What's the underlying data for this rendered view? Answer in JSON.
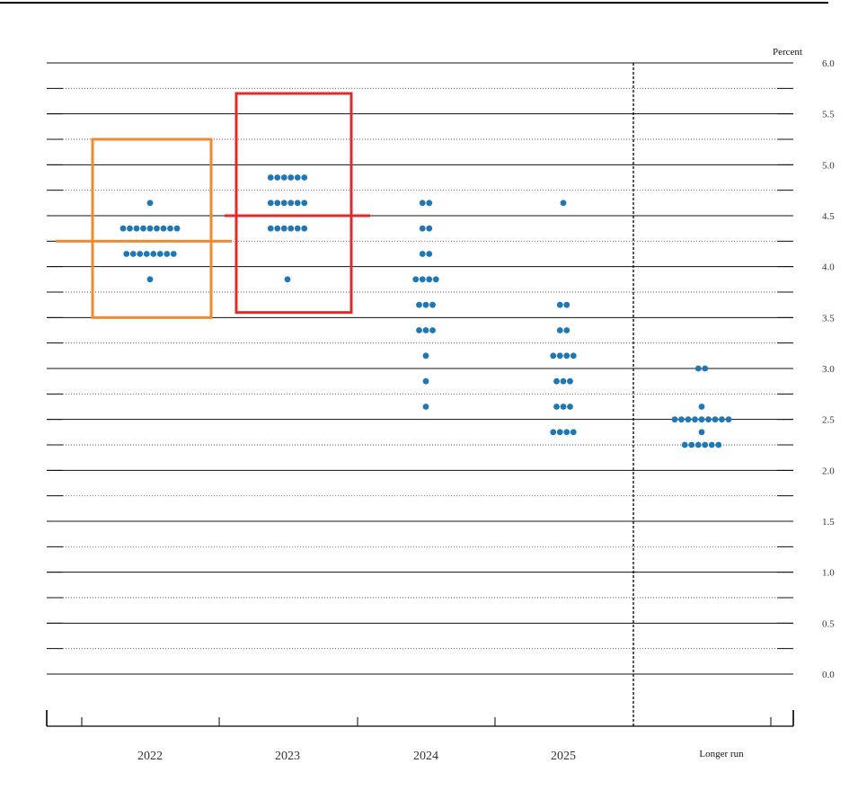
{
  "chart_data": {
    "type": "scatter",
    "subtype": "dot plot",
    "unit_label": "Percent",
    "ylim": [
      0,
      6
    ],
    "y_ticks": [
      "0.0",
      "0.5",
      "1.0",
      "1.5",
      "2.0",
      "2.5",
      "3.0",
      "3.5",
      "4.0",
      "4.5",
      "5.0",
      "5.5",
      "6.0"
    ],
    "grid": "dotted every 0.25, solid every 0.5",
    "categories": [
      "2022",
      "2023",
      "2024",
      "2025",
      "Longer run"
    ],
    "separator_before": "Longer run",
    "dot_color": "#1f77b4",
    "dots": [
      {
        "category": "2022",
        "y": 4.625,
        "count": 1
      },
      {
        "category": "2022",
        "y": 4.375,
        "count": 9
      },
      {
        "category": "2022",
        "y": 4.125,
        "count": 8
      },
      {
        "category": "2022",
        "y": 3.875,
        "count": 1
      },
      {
        "category": "2023",
        "y": 4.875,
        "count": 6
      },
      {
        "category": "2023",
        "y": 4.625,
        "count": 6
      },
      {
        "category": "2023",
        "y": 4.375,
        "count": 6
      },
      {
        "category": "2023",
        "y": 3.875,
        "count": 1
      },
      {
        "category": "2024",
        "y": 4.625,
        "count": 2
      },
      {
        "category": "2024",
        "y": 4.375,
        "count": 2
      },
      {
        "category": "2024",
        "y": 4.125,
        "count": 2
      },
      {
        "category": "2024",
        "y": 3.875,
        "count": 4
      },
      {
        "category": "2024",
        "y": 3.625,
        "count": 3
      },
      {
        "category": "2024",
        "y": 3.375,
        "count": 3
      },
      {
        "category": "2024",
        "y": 3.125,
        "count": 1
      },
      {
        "category": "2024",
        "y": 2.875,
        "count": 1
      },
      {
        "category": "2024",
        "y": 2.625,
        "count": 1
      },
      {
        "category": "2025",
        "y": 4.625,
        "count": 1
      },
      {
        "category": "2025",
        "y": 3.625,
        "count": 2
      },
      {
        "category": "2025",
        "y": 3.375,
        "count": 2
      },
      {
        "category": "2025",
        "y": 3.125,
        "count": 4
      },
      {
        "category": "2025",
        "y": 2.875,
        "count": 3
      },
      {
        "category": "2025",
        "y": 2.625,
        "count": 3
      },
      {
        "category": "2025",
        "y": 2.375,
        "count": 4
      },
      {
        "category": "Longer run",
        "y": 3.0,
        "count": 2
      },
      {
        "category": "Longer run",
        "y": 2.625,
        "count": 1
      },
      {
        "category": "Longer run",
        "y": 2.5,
        "count": 9
      },
      {
        "category": "Longer run",
        "y": 2.375,
        "count": 1
      },
      {
        "category": "Longer run",
        "y": 2.25,
        "count": 6
      }
    ],
    "annotations": [
      {
        "category": "2022",
        "type": "box",
        "color": "#f08a2c",
        "y_range": [
          3.5,
          5.25
        ],
        "median_line": 4.25
      },
      {
        "category": "2023",
        "type": "box",
        "color": "#e02b2b",
        "y_range": [
          3.55,
          5.7
        ],
        "median_line": 4.5
      }
    ]
  }
}
